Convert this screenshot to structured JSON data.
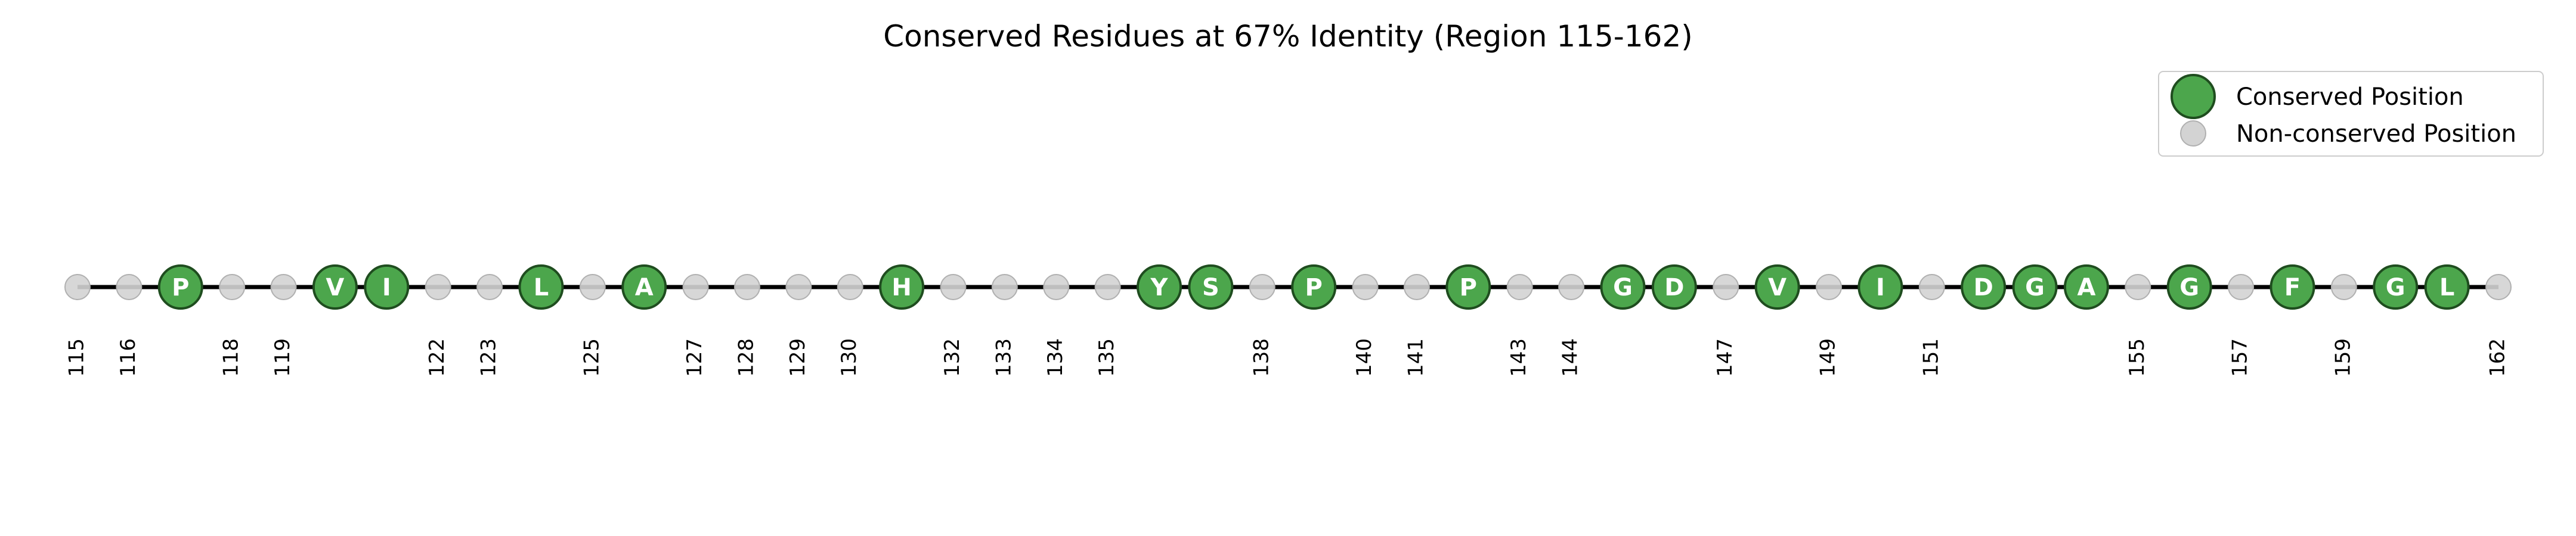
{
  "chart_data": {
    "type": "scatter",
    "title": "Conserved Residues at 67% Identity (Region 115-162)",
    "xlim": [
      115,
      162
    ],
    "positions": [
      115,
      116,
      117,
      118,
      119,
      120,
      121,
      122,
      123,
      124,
      125,
      126,
      127,
      128,
      129,
      130,
      131,
      132,
      133,
      134,
      135,
      136,
      137,
      138,
      139,
      140,
      141,
      142,
      143,
      144,
      145,
      146,
      147,
      148,
      149,
      150,
      151,
      152,
      153,
      154,
      155,
      156,
      157,
      158,
      159,
      160,
      161,
      162
    ],
    "conserved": [
      {
        "x": 117,
        "residue": "P"
      },
      {
        "x": 120,
        "residue": "V"
      },
      {
        "x": 121,
        "residue": "I"
      },
      {
        "x": 124,
        "residue": "L"
      },
      {
        "x": 126,
        "residue": "A"
      },
      {
        "x": 131,
        "residue": "H"
      },
      {
        "x": 136,
        "residue": "Y"
      },
      {
        "x": 137,
        "residue": "S"
      },
      {
        "x": 139,
        "residue": "P"
      },
      {
        "x": 142,
        "residue": "P"
      },
      {
        "x": 145,
        "residue": "G"
      },
      {
        "x": 146,
        "residue": "D"
      },
      {
        "x": 148,
        "residue": "V"
      },
      {
        "x": 150,
        "residue": "I"
      },
      {
        "x": 152,
        "residue": "D"
      },
      {
        "x": 153,
        "residue": "G"
      },
      {
        "x": 154,
        "residue": "A"
      },
      {
        "x": 156,
        "residue": "G"
      },
      {
        "x": 158,
        "residue": "F"
      },
      {
        "x": 160,
        "residue": "G"
      },
      {
        "x": 161,
        "residue": "L"
      }
    ],
    "tick_labels": [
      "115",
      "116",
      "118",
      "119",
      "122",
      "123",
      "125",
      "127",
      "128",
      "129",
      "130",
      "132",
      "133",
      "134",
      "135",
      "138",
      "140",
      "141",
      "143",
      "144",
      "147",
      "149",
      "151",
      "155",
      "157",
      "159",
      "162"
    ],
    "legend": {
      "placement": "top-right",
      "entries": [
        {
          "label": "Conserved Position",
          "kind": "conserved"
        },
        {
          "label": "Non-conserved Position",
          "kind": "nonconserved"
        }
      ]
    },
    "colors": {
      "conserved_fill": "#4ca64c",
      "conserved_edge": "#1f4d1f",
      "nonconserved_fill": "#d3d3d3",
      "nonconserved_edge": "#b0b0b0",
      "line": "#000000"
    }
  }
}
